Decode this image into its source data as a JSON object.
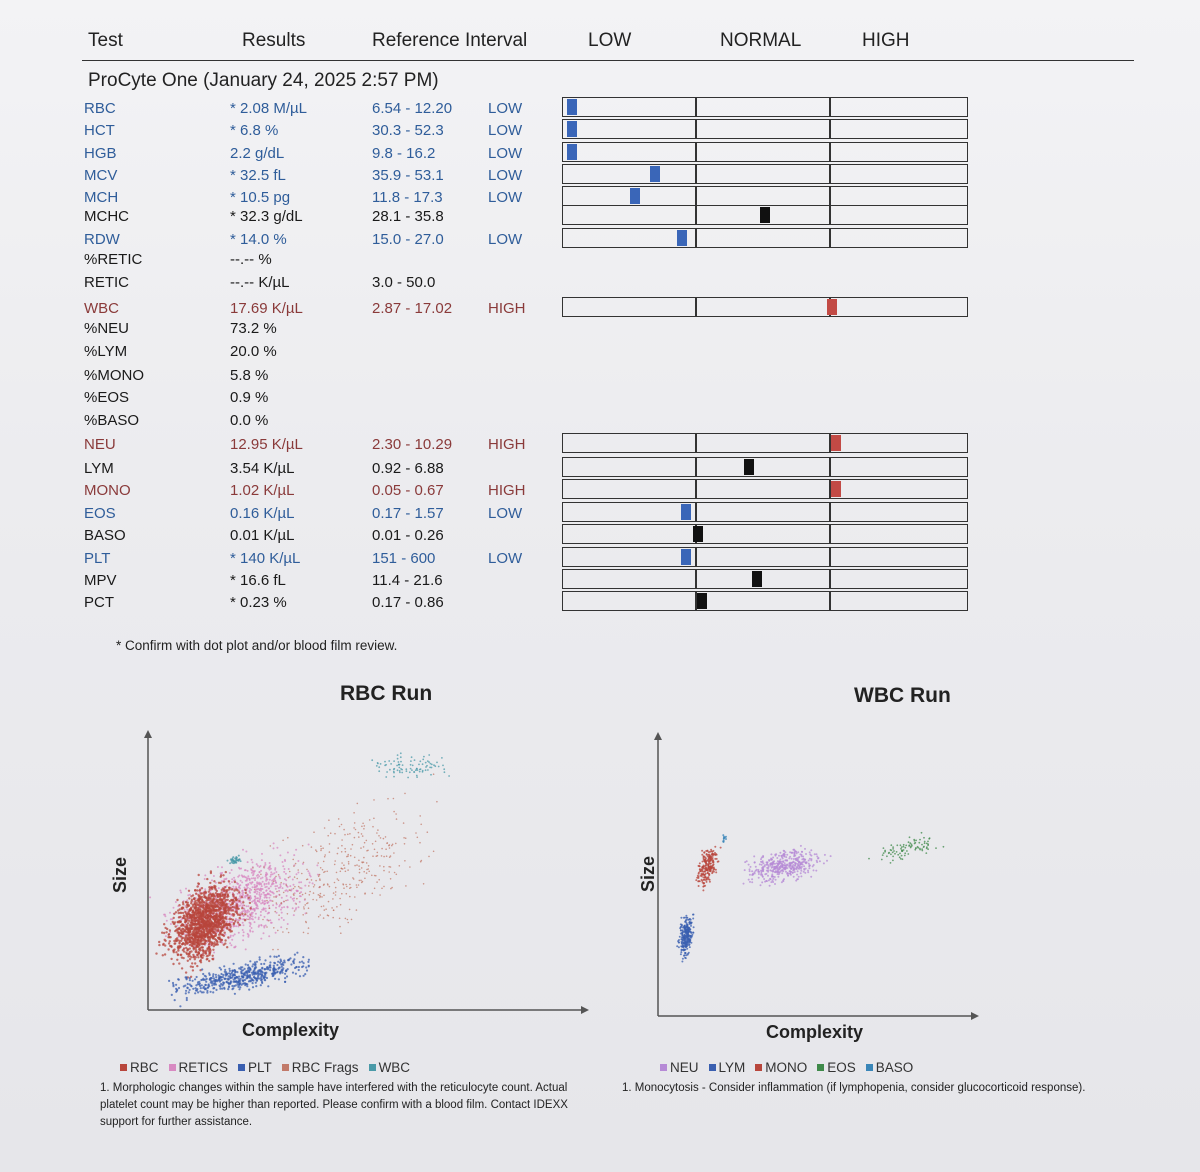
{
  "header": {
    "test": "Test",
    "results": "Results",
    "reference": "Reference Interval",
    "low": "LOW",
    "normal": "NORMAL",
    "high": "HIGH"
  },
  "instrument": "ProCyte One (January 24, 2025 2:57 PM)",
  "rows": [
    {
      "test": "RBC",
      "result": "* 2.08 M/µL",
      "ref": "6.54 - 12.20",
      "flag": "LOW",
      "color": "blue",
      "marker": "low",
      "pos": 0.01
    },
    {
      "test": "HCT",
      "result": "* 6.8 %",
      "ref": "30.3 - 52.3",
      "flag": "LOW",
      "color": "blue",
      "marker": "low",
      "pos": 0.01
    },
    {
      "test": "HGB",
      "result": "2.2 g/dL",
      "ref": "9.8 - 16.2",
      "flag": "LOW",
      "color": "blue",
      "marker": "low",
      "pos": 0.01
    },
    {
      "test": "MCV",
      "result": "* 32.5 fL",
      "ref": "35.9 - 53.1",
      "flag": "LOW",
      "color": "blue",
      "marker": "low",
      "pos": 0.22
    },
    {
      "test": "MCH",
      "result": "* 10.5 pg",
      "ref": "11.8 - 17.3",
      "flag": "LOW",
      "color": "blue",
      "marker": "low",
      "pos": 0.17
    },
    {
      "test": "MCHC",
      "result": "* 32.3 g/dL",
      "ref": "28.1 - 35.8",
      "flag": "",
      "color": "black",
      "marker": "normal",
      "pos": 0.5
    },
    {
      "test": "RDW",
      "result": "* 14.0 %",
      "ref": "15.0 - 27.0",
      "flag": "LOW",
      "color": "blue",
      "marker": "low",
      "pos": 0.29
    },
    {
      "test": "%RETIC",
      "result": "--.-- %",
      "ref": "",
      "flag": "",
      "color": "black",
      "marker": "",
      "pos": null
    },
    {
      "test": "RETIC",
      "result": "--.-- K/µL",
      "ref": "3.0 - 50.0",
      "flag": "",
      "color": "black",
      "marker": "",
      "pos": null
    },
    {
      "test": "WBC",
      "result": "17.69 K/µL",
      "ref": "2.87 - 17.02",
      "flag": "HIGH",
      "color": "red",
      "marker": "high",
      "pos": 0.67
    },
    {
      "test": "%NEU",
      "result": "73.2 %",
      "ref": "",
      "flag": "",
      "color": "black",
      "marker": "",
      "pos": null
    },
    {
      "test": "%LYM",
      "result": "20.0 %",
      "ref": "",
      "flag": "",
      "color": "black",
      "marker": "",
      "pos": null
    },
    {
      "test": "%MONO",
      "result": "5.8 %",
      "ref": "",
      "flag": "",
      "color": "black",
      "marker": "",
      "pos": null
    },
    {
      "test": "%EOS",
      "result": "0.9 %",
      "ref": "",
      "flag": "",
      "color": "black",
      "marker": "",
      "pos": null
    },
    {
      "test": "%BASO",
      "result": "0.0 %",
      "ref": "",
      "flag": "",
      "color": "black",
      "marker": "",
      "pos": null
    },
    {
      "test": "NEU",
      "result": "12.95 K/µL",
      "ref": "2.30 - 10.29",
      "flag": "HIGH",
      "color": "red",
      "marker": "high",
      "pos": 0.68
    },
    {
      "test": "LYM",
      "result": "3.54 K/µL",
      "ref": "0.92 - 6.88",
      "flag": "",
      "color": "black",
      "marker": "normal",
      "pos": 0.46
    },
    {
      "test": "MONO",
      "result": "1.02 K/µL",
      "ref": "0.05 - 0.67",
      "flag": "HIGH",
      "color": "red",
      "marker": "high",
      "pos": 0.68
    },
    {
      "test": "EOS",
      "result": "0.16 K/µL",
      "ref": "0.17 - 1.57",
      "flag": "LOW",
      "color": "blue",
      "marker": "low",
      "pos": 0.3
    },
    {
      "test": "BASO",
      "result": "0.01 K/µL",
      "ref": "0.01 - 0.26",
      "flag": "",
      "color": "black",
      "marker": "normal",
      "pos": 0.33
    },
    {
      "test": "PLT",
      "result": "* 140 K/µL",
      "ref": "151 - 600",
      "flag": "LOW",
      "color": "blue",
      "marker": "low",
      "pos": 0.3
    },
    {
      "test": "MPV",
      "result": "* 16.6 fL",
      "ref": "11.4 - 21.6",
      "flag": "",
      "color": "black",
      "marker": "normal",
      "pos": 0.48
    },
    {
      "test": "PCT",
      "result": "* 0.23 %",
      "ref": "0.17 - 0.86",
      "flag": "",
      "color": "black",
      "marker": "normal",
      "pos": 0.34
    }
  ],
  "confirm_note": "* Confirm with dot plot and/or blood film review.",
  "rbc_plot": {
    "title": "RBC Run",
    "xlabel": "Complexity",
    "ylabel": "Size",
    "legend": [
      {
        "label": "RBC",
        "color": "#b8463c"
      },
      {
        "label": "RETICS",
        "color": "#d88ac2"
      },
      {
        "label": "PLT",
        "color": "#3a5fb0"
      },
      {
        "label": "RBC Frags",
        "color": "#c27a6a"
      },
      {
        "label": "WBC",
        "color": "#4a9aa8"
      }
    ],
    "footnote": "1. Morphologic changes within the sample have interfered with the reticulocyte count. Actual platelet count may be higher than reported. Please confirm with a blood film. Contact IDEXX support for further assistance."
  },
  "wbc_plot": {
    "title": "WBC Run",
    "xlabel": "Complexity",
    "ylabel": "Size",
    "legend": [
      {
        "label": "NEU",
        "color": "#b68ad6"
      },
      {
        "label": "LYM",
        "color": "#3a5fb0"
      },
      {
        "label": "MONO",
        "color": "#b8463c"
      },
      {
        "label": "EOS",
        "color": "#3f8a4a"
      },
      {
        "label": "BASO",
        "color": "#3a86b8"
      }
    ],
    "footnote": "1. Monocytosis - Consider inflammation (if lymphopenia, consider glucocorticoid response)."
  }
}
